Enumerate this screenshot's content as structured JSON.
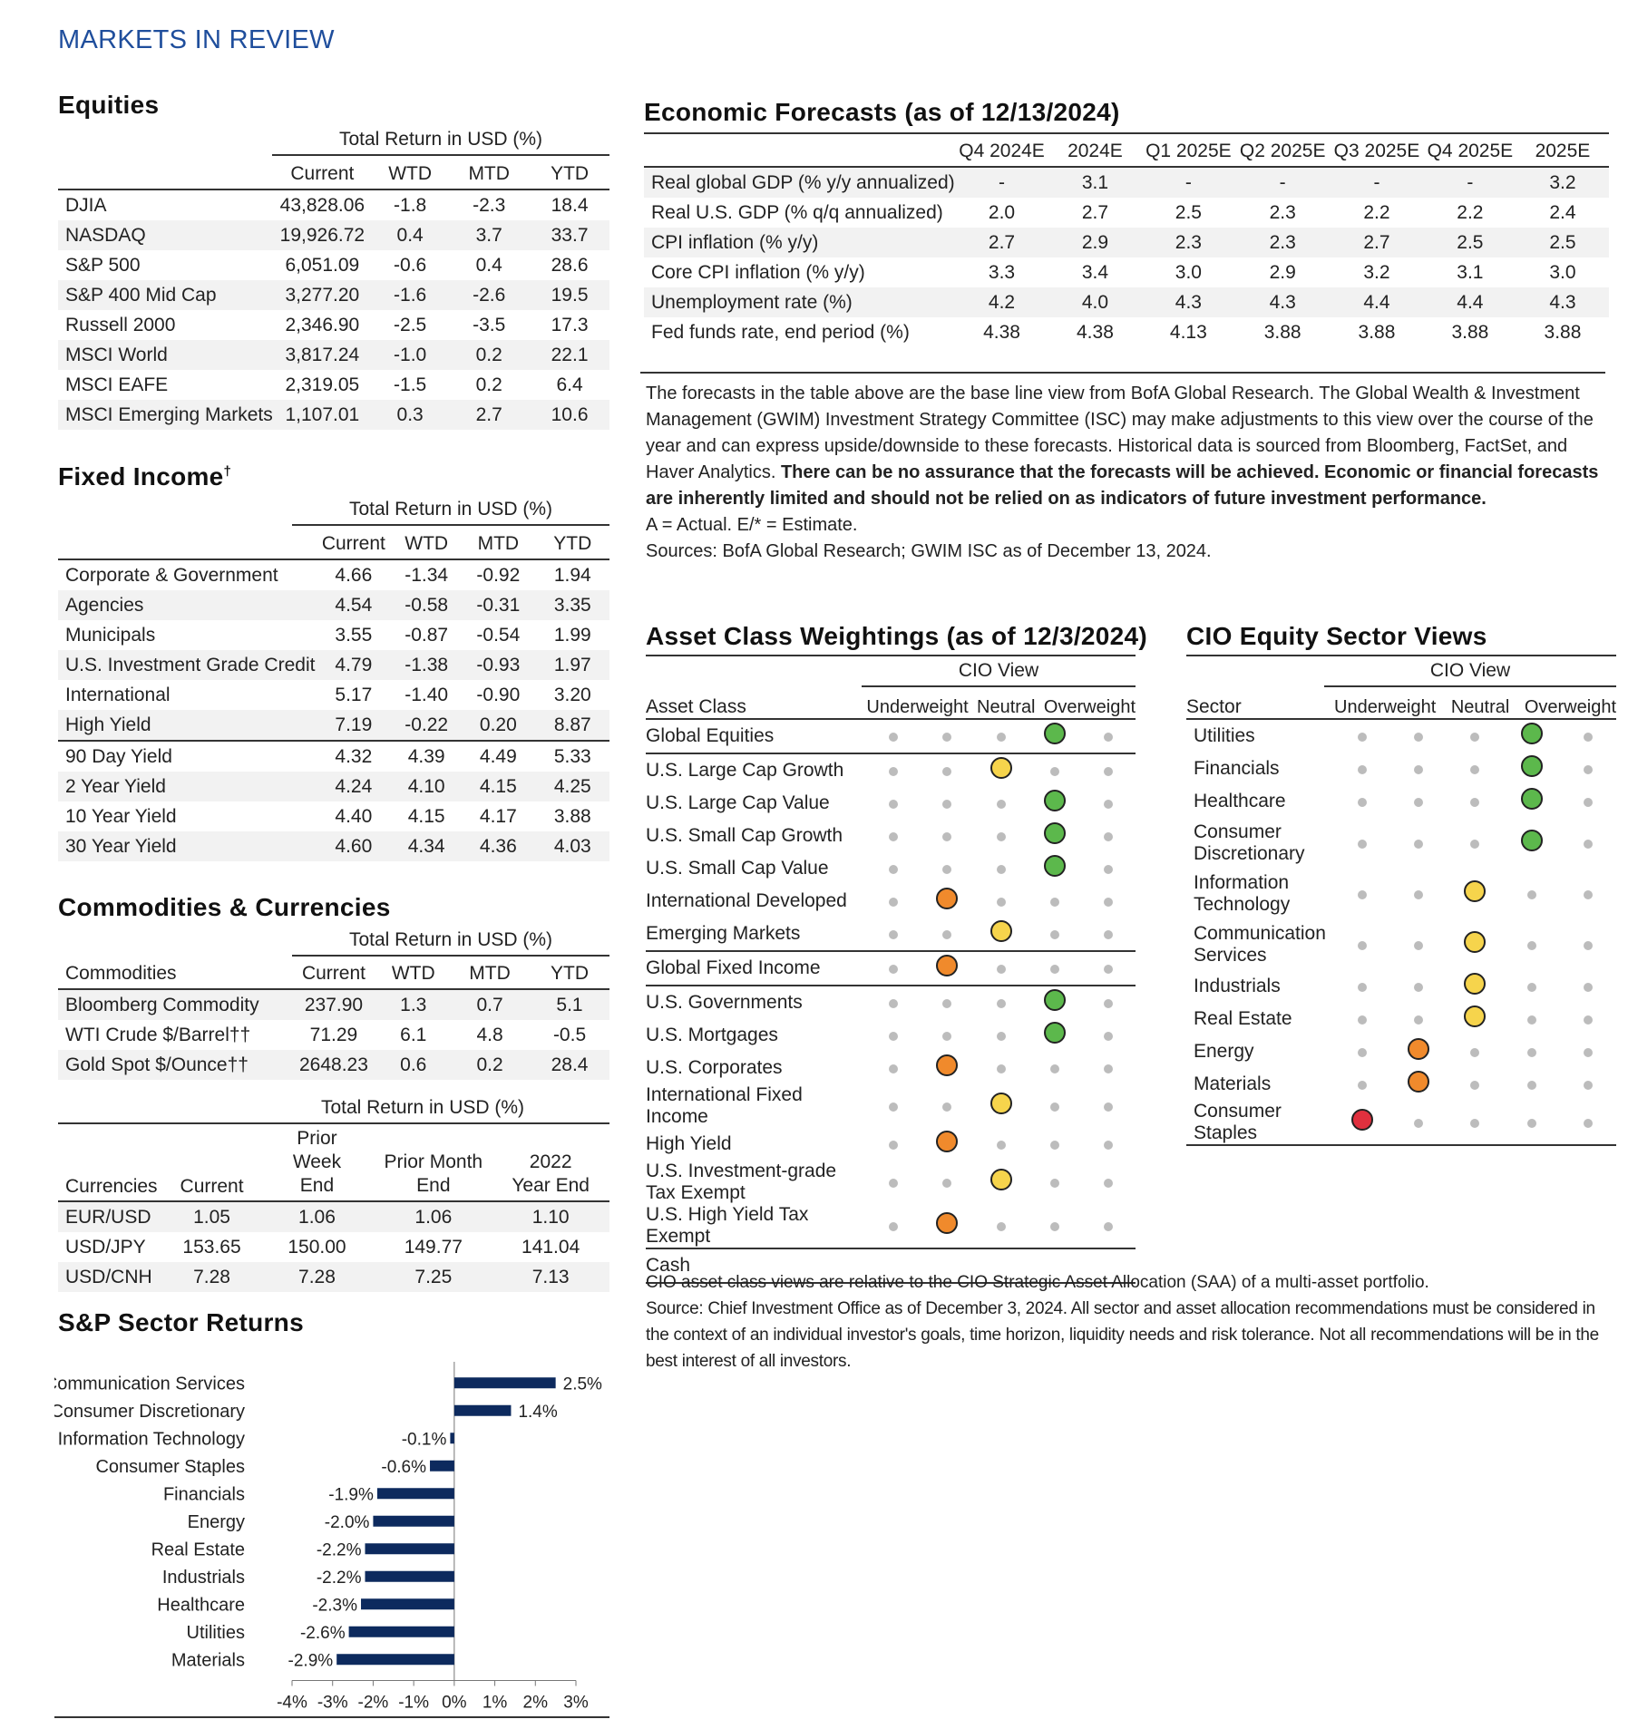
{
  "page_title": "MARKETS IN REVIEW",
  "equities": {
    "title": "Equities",
    "group_header": "Total Return in USD (%)",
    "columns": [
      "",
      "Current",
      "WTD",
      "MTD",
      "YTD"
    ],
    "rows": [
      [
        "DJIA",
        "43,828.06",
        "-1.8",
        "-2.3",
        "18.4"
      ],
      [
        "NASDAQ",
        "19,926.72",
        "0.4",
        "3.7",
        "33.7"
      ],
      [
        "S&P 500",
        "6,051.09",
        "-0.6",
        "0.4",
        "28.6"
      ],
      [
        "S&P 400 Mid Cap",
        "3,277.20",
        "-1.6",
        "-2.6",
        "19.5"
      ],
      [
        "Russell 2000",
        "2,346.90",
        "-2.5",
        "-3.5",
        "17.3"
      ],
      [
        "MSCI World",
        "3,817.24",
        "-1.0",
        "0.2",
        "22.1"
      ],
      [
        "MSCI EAFE",
        "2,319.05",
        "-1.5",
        "0.2",
        "6.4"
      ],
      [
        "MSCI Emerging Markets",
        "1,107.01",
        "0.3",
        "2.7",
        "10.6"
      ]
    ]
  },
  "fixed_income": {
    "title": "Fixed Income",
    "title_mark": "†",
    "group_header": "Total Return in USD (%)",
    "columns": [
      "",
      "Current",
      "WTD",
      "MTD",
      "YTD"
    ],
    "rows": [
      [
        "Corporate & Government",
        "4.66",
        "-1.34",
        "-0.92",
        "1.94"
      ],
      [
        "Agencies",
        "4.54",
        "-0.58",
        "-0.31",
        "3.35"
      ],
      [
        "Municipals",
        "3.55",
        "-0.87",
        "-0.54",
        "1.99"
      ],
      [
        "U.S. Investment Grade Credit",
        "4.79",
        "-1.38",
        "-0.93",
        "1.97"
      ],
      [
        "International",
        "5.17",
        "-1.40",
        "-0.90",
        "3.20"
      ],
      [
        "High Yield",
        "7.19",
        "-0.22",
        "0.20",
        "8.87"
      ]
    ],
    "yield_rows": [
      [
        "90 Day Yield",
        "4.32",
        "4.39",
        "4.49",
        "5.33"
      ],
      [
        "2 Year Yield",
        "4.24",
        "4.10",
        "4.15",
        "4.25"
      ],
      [
        "10 Year Yield",
        "4.40",
        "4.15",
        "4.17",
        "3.88"
      ],
      [
        "30 Year Yield",
        "4.60",
        "4.34",
        "4.36",
        "4.03"
      ]
    ]
  },
  "commodities_currencies": {
    "title": "Commodities & Currencies",
    "group_header": "Total Return in USD (%)",
    "columns": [
      "Commodities",
      "Current",
      "WTD",
      "MTD",
      "YTD"
    ],
    "rows": [
      [
        "Bloomberg Commodity",
        "237.90",
        "1.3",
        "0.7",
        "5.1"
      ],
      [
        "WTI Crude $/Barrel††",
        "71.29",
        "6.1",
        "4.8",
        "-0.5"
      ],
      [
        "Gold Spot $/Ounce††",
        "2648.23",
        "0.6",
        "0.2",
        "28.4"
      ]
    ],
    "fx_group_header": "Total Return in USD (%)",
    "fx_columns": [
      "Currencies",
      "Current",
      "Prior Week End",
      "Prior Month End",
      "2022 Year End"
    ],
    "fx_rows": [
      [
        "EUR/USD",
        "1.05",
        "1.06",
        "1.06",
        "1.10"
      ],
      [
        "USD/JPY",
        "153.65",
        "150.00",
        "149.77",
        "141.04"
      ],
      [
        "USD/CNH",
        "7.28",
        "7.28",
        "7.25",
        "7.13"
      ]
    ]
  },
  "sector_returns": {
    "title": "S&P Sector Returns"
  },
  "chart_data": {
    "type": "bar",
    "orientation": "horizontal",
    "categories": [
      "Communication Services",
      "Consumer Discretionary",
      "Information Technology",
      "Consumer Staples",
      "Financials",
      "Energy",
      "Real Estate",
      "Industrials",
      "Healthcare",
      "Utilities",
      "Materials"
    ],
    "values": [
      2.5,
      1.4,
      -0.1,
      -0.6,
      -1.9,
      -2.0,
      -2.2,
      -2.2,
      -2.3,
      -2.6,
      -2.9
    ],
    "data_labels": [
      "2.5%",
      "1.4%",
      "-0.1%",
      "-0.6%",
      "-1.9%",
      "-2.0%",
      "-2.2%",
      "-2.2%",
      "-2.3%",
      "-2.6%",
      "-2.9%"
    ],
    "xlim": [
      -4,
      3
    ],
    "xticks": [
      -4,
      -3,
      -2,
      -1,
      0,
      1,
      2,
      3
    ],
    "xtick_labels": [
      "-4%",
      "-3%",
      "-2%",
      "-1%",
      "0%",
      "1%",
      "2%",
      "3%"
    ],
    "color": "#0d2a5e"
  },
  "economic_forecasts": {
    "title": "Economic Forecasts (as of 12/13/2024)",
    "columns": [
      "",
      "Q4 2024E",
      "2024E",
      "Q1 2025E",
      "Q2 2025E",
      "Q3 2025E",
      "Q4 2025E",
      "2025E"
    ],
    "rows": [
      [
        "Real global GDP (% y/y annualized)",
        "-",
        "3.1",
        "-",
        "-",
        "-",
        "-",
        "3.2"
      ],
      [
        "Real U.S. GDP (% q/q annualized)",
        "2.0",
        "2.7",
        "2.5",
        "2.3",
        "2.2",
        "2.2",
        "2.4"
      ],
      [
        "CPI inflation (% y/y)",
        "2.7",
        "2.9",
        "2.3",
        "2.3",
        "2.7",
        "2.5",
        "2.5"
      ],
      [
        "Core CPI inflation (% y/y)",
        "3.3",
        "3.4",
        "3.0",
        "2.9",
        "3.2",
        "3.1",
        "3.0"
      ],
      [
        "Unemployment rate (%)",
        "4.2",
        "4.0",
        "4.3",
        "4.3",
        "4.4",
        "4.4",
        "4.3"
      ],
      [
        "Fed funds rate, end period (%)",
        "4.38",
        "4.38",
        "4.13",
        "3.88",
        "3.88",
        "3.88",
        "3.88"
      ]
    ],
    "note_plain": "The forecasts in the table above are the base line view from BofA Global Research. The Global Wealth & Investment Management (GWIM) Investment Strategy Committee (ISC) may make adjustments to this view over the course of the year and can express upside/downside to these forecasts. Historical data is sourced from Bloomberg, FactSet, and Haver Analytics. ",
    "note_bold": "There can be no assurance that the forecasts will be achieved. Economic or financial forecasts are inherently limited and should not be relied on as indicators of future investment performance.",
    "note_legend": "A = Actual.   E/* = Estimate.",
    "note_sources": "Sources: BofA Global Research; GWIM ISC as of December 13, 2024."
  },
  "asset_class": {
    "title": "Asset Class Weightings (as of 12/3/2024)",
    "group_header": "CIO View",
    "label_header": "Asset Class",
    "view_headers": [
      "Underweight",
      "Neutral",
      "Overweight"
    ],
    "rows": [
      {
        "label": "Global Equities",
        "position": 4,
        "color": "green",
        "group_start": true
      },
      {
        "label": "U.S. Large Cap Growth",
        "position": 3,
        "color": "yellow",
        "group_start": true
      },
      {
        "label": "U.S. Large Cap Value",
        "position": 4,
        "color": "green"
      },
      {
        "label": "U.S. Small Cap Growth",
        "position": 4,
        "color": "green"
      },
      {
        "label": "U.S. Small Cap Value",
        "position": 4,
        "color": "green"
      },
      {
        "label": "International Developed",
        "position": 2,
        "color": "orange"
      },
      {
        "label": "Emerging Markets",
        "position": 3,
        "color": "yellow"
      },
      {
        "label": "Global Fixed Income",
        "position": 2,
        "color": "orange",
        "group_start": true
      },
      {
        "label": "U.S. Governments",
        "position": 4,
        "color": "green",
        "group_start": true
      },
      {
        "label": "U.S. Mortgages",
        "position": 4,
        "color": "green"
      },
      {
        "label": "U.S. Corporates",
        "position": 2,
        "color": "orange"
      },
      {
        "label": "International Fixed Income",
        "position": 3,
        "color": "yellow"
      },
      {
        "label": "High Yield",
        "position": 2,
        "color": "orange"
      },
      {
        "label": "U.S. Investment-grade Tax Exempt",
        "position": 3,
        "color": "yellow"
      },
      {
        "label": "U.S. High Yield Tax Exempt",
        "position": 2,
        "color": "orange"
      },
      {
        "label": "Cash",
        "position": 0,
        "color": "",
        "group_start": true
      }
    ],
    "note_line1": "CIO asset class views are relative to the CIO Strategic Asset Allocation (SAA) of a multi-asset portfolio.",
    "note_line2": "Source: Chief Investment Office as of December 3, 2024. All sector and asset allocation recommendations must be considered in the context of an individual investor's goals, time horizon, liquidity needs and risk tolerance. Not all recommendations will be in the best interest of all investors."
  },
  "sector_views": {
    "title": "CIO Equity Sector Views",
    "group_header": "CIO View",
    "label_header": "Sector",
    "view_headers": [
      "Underweight",
      "Neutral",
      "Overweight"
    ],
    "rows": [
      {
        "label": "Utilities",
        "position": 4,
        "color": "green"
      },
      {
        "label": "Financials",
        "position": 4,
        "color": "green"
      },
      {
        "label": "Healthcare",
        "position": 4,
        "color": "green"
      },
      {
        "label": "Consumer Discretionary",
        "position": 4,
        "color": "green"
      },
      {
        "label": "Information Technology",
        "position": 3,
        "color": "yellow"
      },
      {
        "label": "Communication Services",
        "position": 3,
        "color": "yellow"
      },
      {
        "label": "Industrials",
        "position": 3,
        "color": "yellow"
      },
      {
        "label": "Real Estate",
        "position": 3,
        "color": "yellow"
      },
      {
        "label": "Energy",
        "position": 2,
        "color": "orange"
      },
      {
        "label": "Materials",
        "position": 2,
        "color": "orange"
      },
      {
        "label": "Consumer Staples",
        "position": 1,
        "color": "red"
      }
    ]
  }
}
